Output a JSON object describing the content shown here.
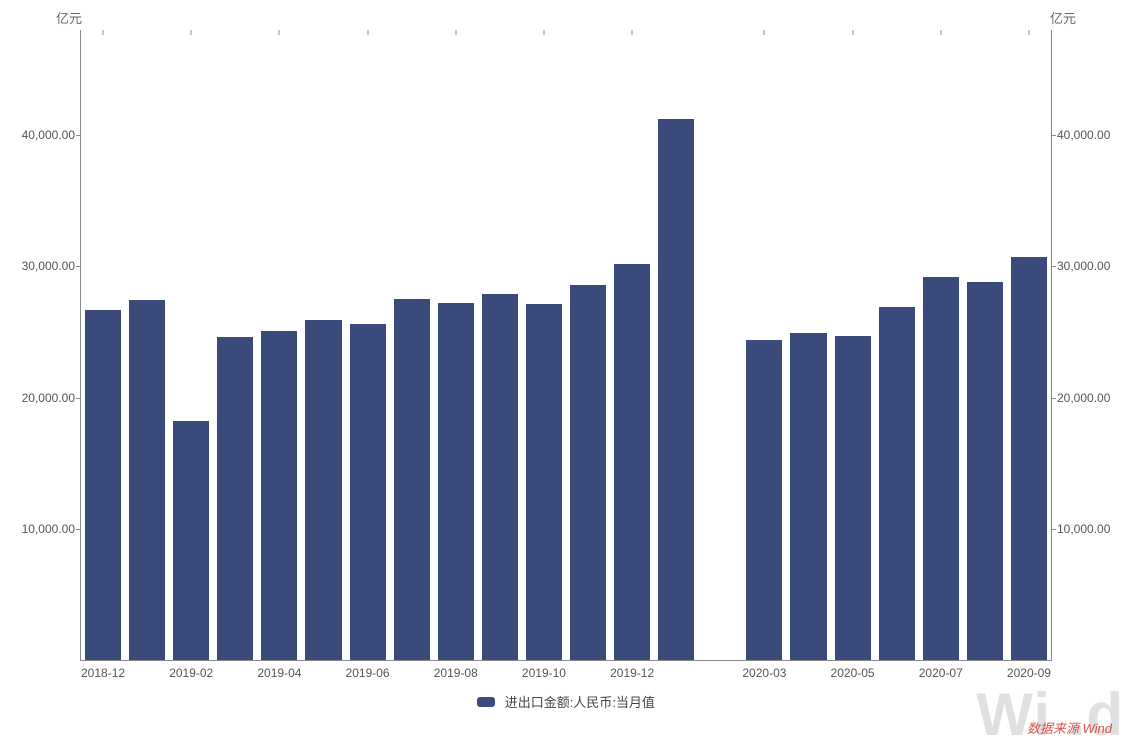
{
  "chart": {
    "type": "bar",
    "unit_label_left": "亿元",
    "unit_label_right": "亿元",
    "background_color": "#ffffff",
    "axis_color": "#888888",
    "tick_font_size": 12,
    "tick_color": "#555555",
    "bar_color": "#3a4a7a",
    "bar_width_ratio": 0.82,
    "y_axis": {
      "min": 0,
      "max": 48000,
      "ticks": [
        10000,
        20000,
        30000,
        40000
      ],
      "tick_labels": [
        "10,000.00",
        "20,000.00",
        "30,000.00",
        "40,000.00"
      ]
    },
    "x_axis": {
      "tick_labels": [
        "2018-12",
        "2019-02",
        "2019-04",
        "2019-06",
        "2019-08",
        "2019-10",
        "2019-12",
        "2020-03",
        "2020-05",
        "2020-07",
        "2020-09"
      ],
      "tick_positions_idx": [
        0,
        2,
        4,
        6,
        8,
        10,
        12,
        15,
        17,
        19,
        21
      ]
    },
    "series": {
      "name": "进出口金额:人民币:当月值",
      "categories": [
        "2018-12",
        "2019-01",
        "2019-02",
        "2019-03",
        "2019-04",
        "2019-05",
        "2019-06",
        "2019-07",
        "2019-08",
        "2019-09",
        "2019-10",
        "2019-11",
        "2019-12",
        "2020-01",
        "2020-02",
        "2020-03",
        "2020-04",
        "2020-05",
        "2020-06",
        "2020-07",
        "2020-08",
        "2020-09"
      ],
      "values": [
        26700,
        27400,
        18200,
        24600,
        25100,
        25900,
        25600,
        27500,
        27200,
        27900,
        27100,
        28600,
        30200,
        41200,
        null,
        24400,
        24900,
        24700,
        26900,
        29200,
        28800,
        30700
      ]
    },
    "legend": {
      "label": "进出口金额:人民币:当月值",
      "swatch_color": "#3a4a7a"
    },
    "source_label": "数据来源 Wind",
    "watermark": "Wi  .d"
  }
}
